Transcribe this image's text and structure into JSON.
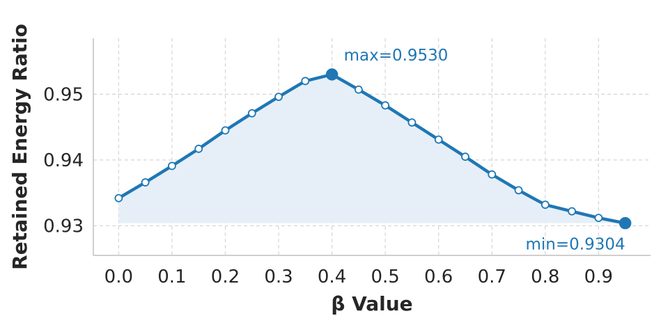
{
  "chart_data": {
    "type": "line",
    "title": "",
    "xlabel": "β Value",
    "ylabel": "Retained Energy Ratio",
    "x": [
      0.0,
      0.05,
      0.1,
      0.15,
      0.2,
      0.25,
      0.3,
      0.35,
      0.4,
      0.45,
      0.5,
      0.55,
      0.6,
      0.65,
      0.7,
      0.75,
      0.8,
      0.85,
      0.9,
      0.95
    ],
    "series": [
      {
        "values": [
          0.9342,
          0.9366,
          0.9391,
          0.9417,
          0.9445,
          0.9471,
          0.9496,
          0.952,
          0.953,
          0.9507,
          0.9483,
          0.9457,
          0.9431,
          0.9405,
          0.9378,
          0.9354,
          0.9332,
          0.9322,
          0.9312,
          0.9304
        ]
      }
    ],
    "xlim": [
      -0.0475,
      0.9975
    ],
    "ylim": [
      0.9255,
      0.9585
    ],
    "xticks": [
      "0.0",
      "0.1",
      "0.2",
      "0.3",
      "0.4",
      "0.5",
      "0.6",
      "0.7",
      "0.8",
      "0.9"
    ],
    "yticks": [
      "0.93",
      "0.94",
      "0.95"
    ],
    "fill_base": 0.9304,
    "grid": true,
    "legend": "none",
    "annotations": [
      {
        "text": "max=0.9530",
        "x": 0.4,
        "y": 0.953
      },
      {
        "text": "min=0.9304",
        "x": 0.95,
        "y": 0.9304
      }
    ],
    "colors": {
      "line": "#1f77b4",
      "fill": "#e6eff8",
      "grid": "#d5d5d5",
      "axis": "#bfbfbf",
      "text": "#262626"
    }
  }
}
